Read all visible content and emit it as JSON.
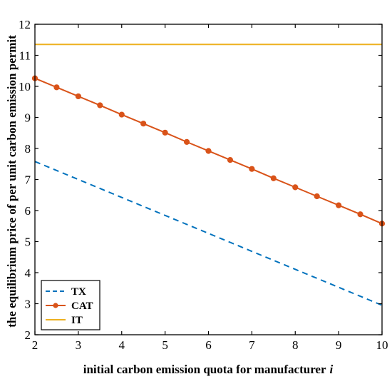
{
  "chart_data": {
    "type": "line",
    "xlabel": "initial carbon emission quota for manufacturer",
    "xlabel_var": "i",
    "ylabel": "the equilibrium price of per unit carbon emission permit",
    "xlim": [
      2,
      10
    ],
    "ylim": [
      2,
      12
    ],
    "xticks": [
      "2",
      "3",
      "4",
      "5",
      "6",
      "7",
      "8",
      "9",
      "10"
    ],
    "yticks": [
      "2",
      "3",
      "4",
      "5",
      "6",
      "7",
      "8",
      "9",
      "10",
      "11",
      "12"
    ],
    "grid": false,
    "legend_position": "bottom-left",
    "series": [
      {
        "name": "TX",
        "style": "dashed",
        "color": "#0072BD",
        "markers": false,
        "x": [
          2,
          10
        ],
        "y": [
          7.58,
          2.95
        ]
      },
      {
        "name": "CAT",
        "style": "solid",
        "color": "#D95319",
        "markers": true,
        "x": [
          2,
          2.5,
          3,
          3.5,
          4,
          4.5,
          5,
          5.5,
          6,
          6.5,
          7,
          7.5,
          8,
          8.5,
          9,
          9.5,
          10
        ],
        "y": [
          10.26,
          9.97,
          9.68,
          9.39,
          9.09,
          8.8,
          8.51,
          8.21,
          7.92,
          7.63,
          7.34,
          7.04,
          6.75,
          6.46,
          6.17,
          5.88,
          5.58
        ]
      },
      {
        "name": "IT",
        "style": "solid",
        "color": "#EDB120",
        "markers": false,
        "x": [
          2,
          10
        ],
        "y": [
          11.35,
          11.35
        ]
      }
    ]
  }
}
